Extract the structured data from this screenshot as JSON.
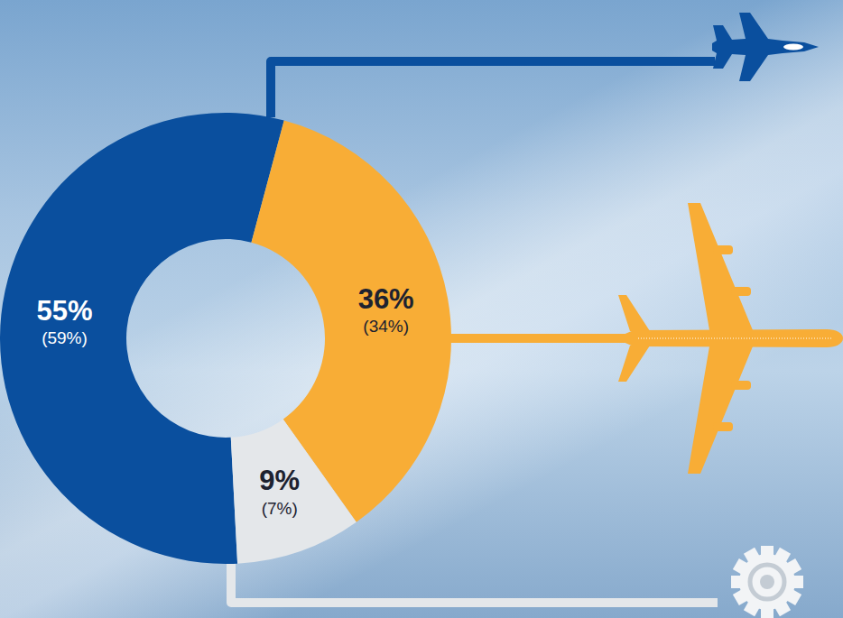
{
  "chart_data": {
    "type": "donut",
    "values": [
      55,
      36,
      9
    ],
    "value_labels": [
      "55%",
      "36%",
      "9%"
    ],
    "previous_values": [
      59,
      34,
      7
    ],
    "previous_value_labels": [
      "(59%)",
      "(34%)",
      "(7%)"
    ],
    "colors": [
      "#0a4f9e",
      "#f8ad36",
      "#e4e7ea"
    ],
    "data_labels": true
  }
}
